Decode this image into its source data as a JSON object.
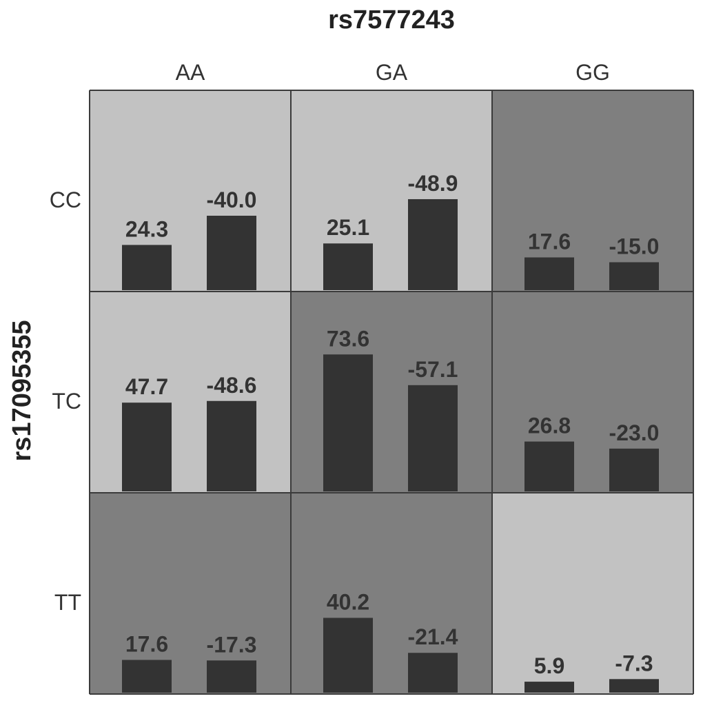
{
  "chart_data": {
    "type": "bar",
    "title": "rs7577243",
    "ylabel": "rs17095355",
    "columns": [
      "AA",
      "GA",
      "GG"
    ],
    "rows": [
      "CC",
      "TC",
      "TT"
    ],
    "ylim": [
      0,
      80
    ],
    "cells": [
      {
        "row": "CC",
        "col": "AA",
        "shade": "light",
        "values": [
          24.3,
          -40.0
        ],
        "labels": [
          "24.3",
          "-40.0"
        ]
      },
      {
        "row": "CC",
        "col": "GA",
        "shade": "light",
        "values": [
          25.1,
          -48.9
        ],
        "labels": [
          "25.1",
          "-48.9"
        ]
      },
      {
        "row": "CC",
        "col": "GG",
        "shade": "dark",
        "values": [
          17.6,
          -15.0
        ],
        "labels": [
          "17.6",
          "-15.0"
        ]
      },
      {
        "row": "TC",
        "col": "AA",
        "shade": "light",
        "values": [
          47.7,
          -48.6
        ],
        "labels": [
          "47.7",
          "-48.6"
        ]
      },
      {
        "row": "TC",
        "col": "GA",
        "shade": "dark",
        "values": [
          73.6,
          -57.1
        ],
        "labels": [
          "73.6",
          "-57.1"
        ]
      },
      {
        "row": "TC",
        "col": "GG",
        "shade": "dark",
        "values": [
          26.8,
          -23.0
        ],
        "labels": [
          "26.8",
          "-23.0"
        ]
      },
      {
        "row": "TT",
        "col": "AA",
        "shade": "dark",
        "values": [
          17.6,
          -17.3
        ],
        "labels": [
          "17.6",
          "-17.3"
        ]
      },
      {
        "row": "TT",
        "col": "GA",
        "shade": "dark",
        "values": [
          40.2,
          -21.4
        ],
        "labels": [
          "40.2",
          "-21.4"
        ]
      },
      {
        "row": "TT",
        "col": "GG",
        "shade": "light",
        "values": [
          5.9,
          -7.3
        ],
        "labels": [
          "5.9",
          "-7.3"
        ]
      }
    ],
    "colors": {
      "light": "#c2c2c2",
      "dark": "#7f7f7f",
      "bar": "#333333",
      "border": "#3a3a3a"
    }
  }
}
